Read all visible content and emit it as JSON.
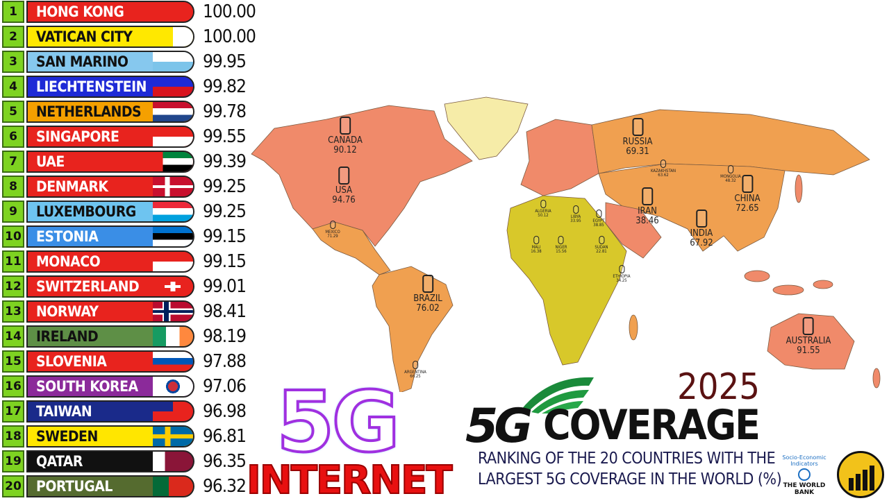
{
  "title": {
    "brand": "5G",
    "word": "COVERAGE",
    "year": "2025",
    "subtitle_line1": "RANKING OF THE 20 COUNTRIES WITH THE",
    "subtitle_line2": "LARGEST 5G COVERAGE IN THE WORLD (%)"
  },
  "badge": {
    "big": "5G",
    "word": "INTERNET"
  },
  "source": {
    "line1": "Socio-Economic",
    "line2": "Indicators",
    "org": "THE WORLD BANK"
  },
  "colors": {
    "rank_box": "#7ed321",
    "map_high": "#f08a6a",
    "map_mid": "#f0a050",
    "map_low": "#d8c82a",
    "year": "#5a1212"
  },
  "ranking": [
    {
      "rank": "1",
      "country": "HONG KONG",
      "value": "100.00",
      "bg": "#e8231e",
      "fg": "#fff",
      "flag": "hong-kong-flag"
    },
    {
      "rank": "2",
      "country": "VATICAN CITY",
      "value": "100.00",
      "bg": "#ffe800",
      "fg": "#111",
      "flag": "vatican-flag"
    },
    {
      "rank": "3",
      "country": "SAN MARINO",
      "value": "99.95",
      "bg": "#86c8ee",
      "fg": "#111",
      "flag": "san-marino-flag"
    },
    {
      "rank": "4",
      "country": "LIECHTENSTEIN",
      "value": "99.82",
      "bg": "#1e2ad6",
      "fg": "#fff",
      "flag": "liechtenstein-flag"
    },
    {
      "rank": "5",
      "country": "NETHERLANDS",
      "value": "99.78",
      "bg": "#f5a000",
      "fg": "#111",
      "flag": "netherlands-flag"
    },
    {
      "rank": "6",
      "country": "SINGAPORE",
      "value": "99.55",
      "bg": "#e8231e",
      "fg": "#fff",
      "flag": "singapore-flag"
    },
    {
      "rank": "7",
      "country": "UAE",
      "value": "99.39",
      "bg": "#e8231e",
      "fg": "#fff",
      "flag": "uae-flag"
    },
    {
      "rank": "8",
      "country": "DENMARK",
      "value": "99.25",
      "bg": "#e8231e",
      "fg": "#fff",
      "flag": "denmark-flag"
    },
    {
      "rank": "9",
      "country": "LUXEMBOURG",
      "value": "99.25",
      "bg": "#6ec4f0",
      "fg": "#111",
      "flag": "luxembourg-flag"
    },
    {
      "rank": "10",
      "country": "ESTONIA",
      "value": "99.15",
      "bg": "#3a8ee6",
      "fg": "#fff",
      "flag": "estonia-flag"
    },
    {
      "rank": "11",
      "country": "MONACO",
      "value": "99.15",
      "bg": "#e8231e",
      "fg": "#fff",
      "flag": "monaco-flag"
    },
    {
      "rank": "12",
      "country": "SWITZERLAND",
      "value": "99.01",
      "bg": "#e8231e",
      "fg": "#fff",
      "flag": "switzerland-flag"
    },
    {
      "rank": "13",
      "country": "NORWAY",
      "value": "98.41",
      "bg": "#e8231e",
      "fg": "#fff",
      "flag": "norway-flag"
    },
    {
      "rank": "14",
      "country": "IRELAND",
      "value": "98.19",
      "bg": "#5e8f46",
      "fg": "#111",
      "flag": "ireland-flag"
    },
    {
      "rank": "15",
      "country": "SLOVENIA",
      "value": "97.88",
      "bg": "#e8231e",
      "fg": "#fff",
      "flag": "slovenia-flag"
    },
    {
      "rank": "16",
      "country": "SOUTH KOREA",
      "value": "97.06",
      "bg": "#8b2a9a",
      "fg": "#fff",
      "flag": "south-korea-flag"
    },
    {
      "rank": "17",
      "country": "TAIWAN",
      "value": "96.98",
      "bg": "#1a2a8a",
      "fg": "#fff",
      "flag": "taiwan-flag"
    },
    {
      "rank": "18",
      "country": "SWEDEN",
      "value": "96.81",
      "bg": "#ffe600",
      "fg": "#111",
      "flag": "sweden-flag"
    },
    {
      "rank": "19",
      "country": "QATAR",
      "value": "96.35",
      "bg": "#111111",
      "fg": "#fff",
      "flag": "qatar-flag"
    },
    {
      "rank": "20",
      "country": "PORTUGAL",
      "value": "96.32",
      "bg": "#556b2f",
      "fg": "#fff",
      "flag": "portugal-flag"
    }
  ],
  "map_labels": [
    {
      "name": "CANADA",
      "value": "90.12",
      "size": "large"
    },
    {
      "name": "USA",
      "value": "94.76",
      "size": "large"
    },
    {
      "name": "RUSSIA",
      "value": "69.31",
      "size": "large"
    },
    {
      "name": "CHINA",
      "value": "72.65",
      "size": "large"
    },
    {
      "name": "INDIA",
      "value": "67.92",
      "size": "large"
    },
    {
      "name": "IRAN",
      "value": "38.46",
      "size": "large"
    },
    {
      "name": "BRAZIL",
      "value": "76.02",
      "size": "large"
    },
    {
      "name": "AUSTRALIA",
      "value": "91.55",
      "size": "large"
    },
    {
      "name": "MEXICO",
      "value": "71.29",
      "size": "small"
    },
    {
      "name": "ALGERIA",
      "value": "50.12",
      "size": "small"
    },
    {
      "name": "LIBYA",
      "value": "33.95",
      "size": "small"
    },
    {
      "name": "EGYPT",
      "value": "38.85",
      "size": "small"
    },
    {
      "name": "SUDAN",
      "value": "22.81",
      "size": "small"
    },
    {
      "name": "MALI",
      "value": "16.38",
      "size": "small"
    },
    {
      "name": "NIGER",
      "value": "15.56",
      "size": "small"
    },
    {
      "name": "KAZAKHSTAN",
      "value": "63.62",
      "size": "small"
    },
    {
      "name": "MONGOLIA",
      "value": "48.32",
      "size": "small"
    },
    {
      "name": "ETHIOPIA",
      "value": "34.25",
      "size": "small"
    },
    {
      "name": "ARGENTINA",
      "value": "66.25",
      "size": "small"
    }
  ]
}
